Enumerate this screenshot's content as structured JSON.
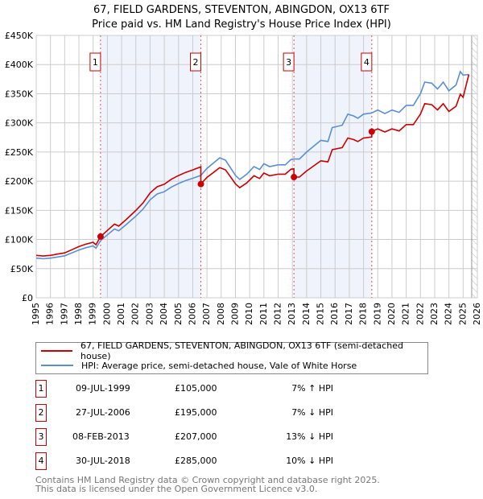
{
  "title": "67, FIELD GARDENS, STEVENTON, ABINGDON, OX13 6TF",
  "subtitle": "Price paid vs. HM Land Registry's House Price Index (HPI)",
  "legend": {
    "red": "67, FIELD GARDENS, STEVENTON, ABINGDON, OX13 6TF (semi-detached house)",
    "blue": "HPI: Average price, semi-detached house, Vale of White Horse"
  },
  "sales": [
    {
      "n": "1",
      "date": "09-JUL-1999",
      "price": "£105,000",
      "hpi": "7% ↑ HPI"
    },
    {
      "n": "2",
      "date": "27-JUL-2006",
      "price": "£195,000",
      "hpi": "7% ↓ HPI"
    },
    {
      "n": "3",
      "date": "08-FEB-2013",
      "price": "£207,000",
      "hpi": "13% ↓ HPI"
    },
    {
      "n": "4",
      "date": "30-JUL-2018",
      "price": "£285,000",
      "hpi": "10% ↓ HPI"
    }
  ],
  "footer": [
    "Contains HM Land Registry data © Crown copyright and database right 2025.",
    "This data is licensed under the Open Government Licence v3.0."
  ],
  "chart_data": {
    "type": "line",
    "xlim": [
      1995,
      2026
    ],
    "ylim": [
      0,
      450000
    ],
    "yticks": [
      0,
      50000,
      100000,
      150000,
      200000,
      250000,
      300000,
      350000,
      400000,
      450000
    ],
    "ytick_labels": [
      "£0",
      "£50K",
      "£100K",
      "£150K",
      "£200K",
      "£250K",
      "£300K",
      "£350K",
      "£400K",
      "£450K"
    ],
    "xticks": [
      1995,
      1996,
      1997,
      1998,
      1999,
      2000,
      2001,
      2002,
      2003,
      2004,
      2005,
      2006,
      2007,
      2008,
      2009,
      2010,
      2011,
      2012,
      2013,
      2014,
      2015,
      2016,
      2017,
      2018,
      2019,
      2020,
      2021,
      2022,
      2023,
      2024,
      2025,
      2026
    ],
    "grid": true,
    "forecast_from": 2025.6,
    "colors": {
      "red": "#cc0000",
      "blue": "#5b8fd4",
      "shade": "#eef3fc",
      "grid": "#cccccc"
    },
    "sale_points": [
      {
        "label": "1",
        "x": 1999.52,
        "y": 105000
      },
      {
        "label": "2",
        "x": 2006.57,
        "y": 195000
      },
      {
        "label": "3",
        "x": 2013.11,
        "y": 207000
      },
      {
        "label": "4",
        "x": 2018.58,
        "y": 285000
      }
    ],
    "shaded_ranges": [
      [
        1999.52,
        2006.57
      ],
      [
        2013.11,
        2018.58
      ]
    ],
    "hpi": [
      [
        1995.0,
        68
      ],
      [
        1995.5,
        67
      ],
      [
        1996.0,
        68
      ],
      [
        1996.5,
        70
      ],
      [
        1997.0,
        72
      ],
      [
        1997.5,
        77
      ],
      [
        1998.0,
        82
      ],
      [
        1998.5,
        86
      ],
      [
        1999.0,
        89
      ],
      [
        1999.2,
        85
      ],
      [
        1999.52,
        98
      ],
      [
        2000.0,
        108
      ],
      [
        2000.5,
        118
      ],
      [
        2000.8,
        115
      ],
      [
        2001.3,
        125
      ],
      [
        2002.0,
        140
      ],
      [
        2002.5,
        152
      ],
      [
        2003.0,
        168
      ],
      [
        2003.5,
        178
      ],
      [
        2004.0,
        182
      ],
      [
        2004.5,
        190
      ],
      [
        2005.0,
        196
      ],
      [
        2005.5,
        201
      ],
      [
        2006.0,
        205
      ],
      [
        2006.57,
        210
      ],
      [
        2007.0,
        222
      ],
      [
        2007.5,
        232
      ],
      [
        2007.9,
        240
      ],
      [
        2008.3,
        236
      ],
      [
        2008.6,
        225
      ],
      [
        2009.0,
        210
      ],
      [
        2009.3,
        203
      ],
      [
        2009.8,
        212
      ],
      [
        2010.3,
        225
      ],
      [
        2010.7,
        220
      ],
      [
        2011.0,
        230
      ],
      [
        2011.4,
        225
      ],
      [
        2012.0,
        228
      ],
      [
        2012.5,
        228
      ],
      [
        2012.9,
        237
      ],
      [
        2013.11,
        238
      ],
      [
        2013.5,
        238
      ],
      [
        2014.0,
        250
      ],
      [
        2014.5,
        260
      ],
      [
        2015.0,
        270
      ],
      [
        2015.5,
        268
      ],
      [
        2015.8,
        292
      ],
      [
        2016.5,
        296
      ],
      [
        2016.9,
        315
      ],
      [
        2017.3,
        312
      ],
      [
        2017.6,
        308
      ],
      [
        2018.0,
        315
      ],
      [
        2018.58,
        317
      ],
      [
        2019.0,
        322
      ],
      [
        2019.5,
        316
      ],
      [
        2020.0,
        322
      ],
      [
        2020.5,
        318
      ],
      [
        2021.0,
        330
      ],
      [
        2021.5,
        330
      ],
      [
        2022.0,
        350
      ],
      [
        2022.3,
        370
      ],
      [
        2022.8,
        368
      ],
      [
        2023.2,
        358
      ],
      [
        2023.6,
        370
      ],
      [
        2024.0,
        355
      ],
      [
        2024.5,
        365
      ],
      [
        2024.8,
        388
      ],
      [
        2025.0,
        382
      ],
      [
        2025.4,
        383
      ]
    ],
    "hpi_units": 1000,
    "price_paid_ratio_segments": [
      [
        1995,
        2006.57,
        1.07
      ],
      [
        2006.57,
        2013.11,
        0.93
      ],
      [
        2013.11,
        2018.58,
        0.87
      ],
      [
        2018.58,
        2025.4,
        0.9
      ]
    ]
  }
}
